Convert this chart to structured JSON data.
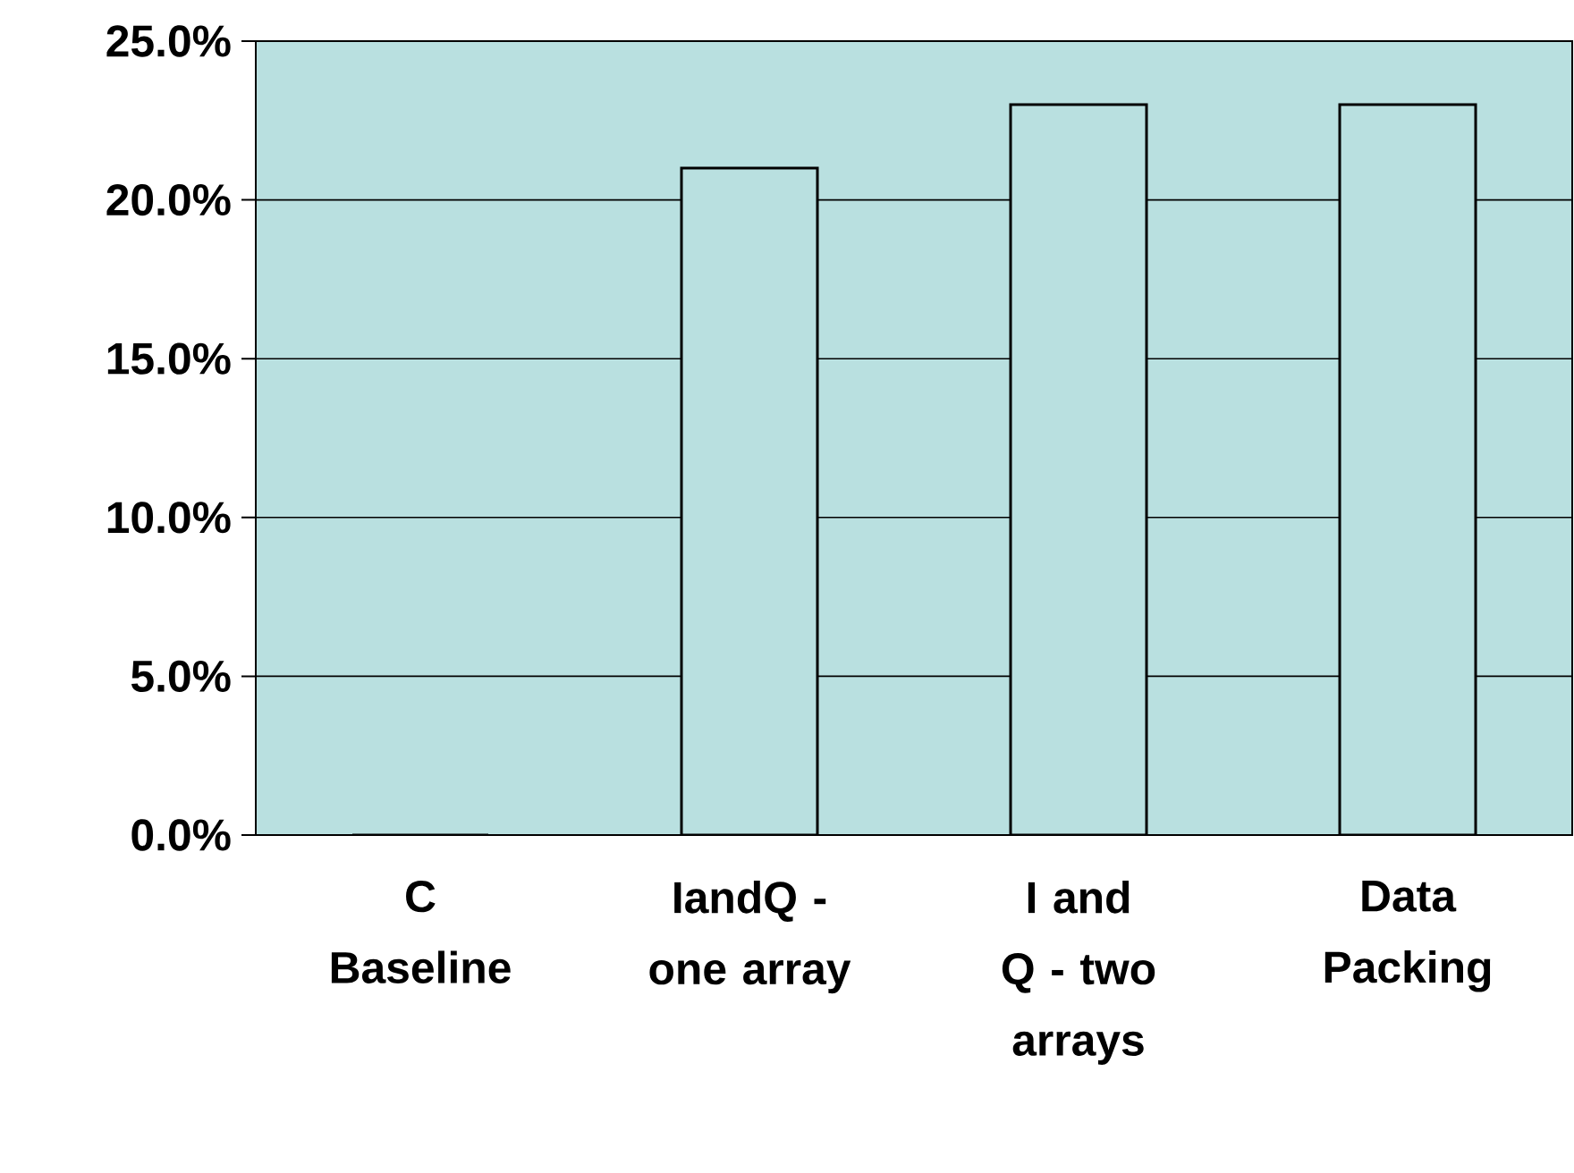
{
  "chart_data": {
    "type": "bar",
    "categories": [
      "C Baseline",
      "IandQ - one array",
      "I and Q - two arrays",
      "Data Packing"
    ],
    "values": [
      0,
      21,
      23,
      23
    ],
    "color": "#b9e0e0",
    "ylim": [
      0,
      25
    ],
    "yticks": [
      {
        "value": 0,
        "label": "0.0%"
      },
      {
        "value": 5,
        "label": "5.0%"
      },
      {
        "value": 10,
        "label": "10.0%"
      },
      {
        "value": 15,
        "label": "15.0%"
      },
      {
        "value": 20,
        "label": "20.0%"
      },
      {
        "value": 25,
        "label": "25.0%"
      }
    ],
    "grid": "y"
  }
}
